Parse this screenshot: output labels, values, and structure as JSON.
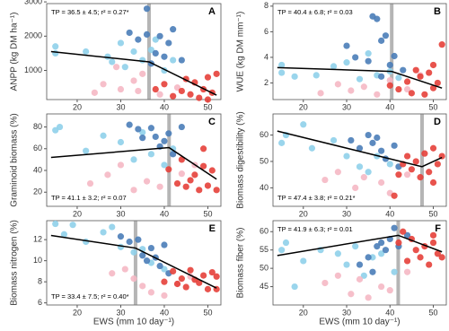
{
  "chart_data": [
    {
      "type": "scatter",
      "letter": "A",
      "ylabel": "ANPP (kg DM ha⁻¹)",
      "annotation": "TP = 36.5 ± 4.5; r² = 0.27*",
      "annotation_corner": "top-left",
      "xlim": [
        13,
        53
      ],
      "xticks": [
        20,
        30,
        40,
        50
      ],
      "ylim": [
        150,
        2950
      ],
      "yticks": [
        1000,
        2000,
        3000
      ],
      "tp": 36.5,
      "fit": {
        "x": [
          14,
          36.5,
          52
        ],
        "values": [
          1550,
          1250,
          280
        ]
      },
      "series": [
        {
          "color": "#8fd0ea",
          "x": [
            15,
            15,
            22,
            27,
            30,
            33,
            35,
            37,
            38,
            40,
            42,
            28,
            31
          ],
          "values": [
            1700,
            1500,
            1550,
            1400,
            1800,
            1550,
            1300,
            1600,
            1900,
            1000,
            1300,
            1250,
            1100
          ]
        },
        {
          "color": "#4a7db8",
          "x": [
            32,
            34,
            36,
            36,
            38,
            39,
            40,
            41,
            42,
            44,
            37
          ],
          "values": [
            2100,
            1900,
            2050,
            2800,
            1500,
            2000,
            1400,
            1800,
            2200,
            1300,
            1200
          ]
        },
        {
          "color": "#f5b8c4",
          "x": [
            24,
            26,
            30,
            33,
            34,
            35,
            39,
            43,
            29
          ],
          "values": [
            350,
            600,
            450,
            700,
            400,
            900,
            300,
            500,
            1100
          ]
        },
        {
          "color": "#e5403a",
          "x": [
            38,
            40,
            42,
            44,
            45,
            46,
            47,
            48,
            49,
            50,
            51,
            52,
            50
          ],
          "values": [
            450,
            600,
            250,
            400,
            750,
            300,
            650,
            200,
            450,
            800,
            350,
            900,
            150
          ]
        }
      ]
    },
    {
      "type": "scatter",
      "letter": "B",
      "ylabel": "WUE (kg DM mm⁻¹)",
      "annotation": "TP = 40.4 ± 6.8; r² = 0.03",
      "annotation_corner": "top-left",
      "xlim": [
        13,
        53
      ],
      "xticks": [
        20,
        30,
        40,
        50
      ],
      "ylim": [
        0.7,
        8.2
      ],
      "yticks": [
        2,
        4,
        6,
        8
      ],
      "tp": 40.4,
      "fit": {
        "x": [
          14,
          40.4,
          52
        ],
        "values": [
          3.2,
          2.9,
          1.6
        ]
      },
      "series": [
        {
          "color": "#8fd0ea",
          "x": [
            15,
            15,
            18,
            23,
            27,
            30,
            33,
            35,
            37,
            40,
            42
          ],
          "values": [
            2.8,
            3.4,
            2.5,
            2.6,
            3.3,
            3.6,
            2.3,
            4.3,
            2.6,
            2.9,
            2.4
          ]
        },
        {
          "color": "#4a7db8",
          "x": [
            30,
            32,
            35,
            36,
            37,
            38,
            39,
            40,
            41,
            43,
            38
          ],
          "values": [
            4.9,
            4.0,
            3.7,
            7.2,
            7.0,
            5.3,
            5.7,
            3.4,
            4.1,
            3.0,
            2.5
          ]
        },
        {
          "color": "#f5b8c4",
          "x": [
            24,
            28,
            31,
            34,
            37,
            40,
            44,
            47
          ],
          "values": [
            1.2,
            1.9,
            1.4,
            1.7,
            1.1,
            2.2,
            1.5,
            2.6
          ]
        },
        {
          "color": "#e5403a",
          "x": [
            40,
            42,
            44,
            45,
            46,
            47,
            48,
            49,
            50,
            51,
            52,
            50
          ],
          "values": [
            1.8,
            1.5,
            2.1,
            1.2,
            3.0,
            2.5,
            1.1,
            2.8,
            1.6,
            2.0,
            5.0,
            3.4
          ]
        }
      ]
    },
    {
      "type": "scatter",
      "letter": "C",
      "ylabel": "Graminoid biomass (%)",
      "annotation": "TP = 41.1 ± 3.2; r² = 0.07",
      "annotation_corner": "bottom-left",
      "xlim": [
        13,
        53
      ],
      "xticks": [
        20,
        30,
        40,
        50
      ],
      "ylim": [
        7,
        92
      ],
      "yticks": [
        20,
        40,
        60,
        80
      ],
      "tp": 41.1,
      "fit": {
        "x": [
          14,
          41.1,
          52
        ],
        "values": [
          52,
          61,
          32
        ]
      },
      "series": [
        {
          "color": "#8fd0ea",
          "x": [
            15,
            16,
            22,
            26,
            30,
            33,
            35,
            37,
            40,
            42
          ],
          "values": [
            77,
            80,
            58,
            72,
            66,
            50,
            75,
            55,
            45,
            60
          ]
        },
        {
          "color": "#4a7db8",
          "x": [
            32,
            34,
            35,
            37,
            38,
            39,
            40,
            41,
            42,
            44
          ],
          "values": [
            82,
            78,
            70,
            79,
            71,
            62,
            67,
            74,
            55,
            80
          ]
        },
        {
          "color": "#f5b8c4",
          "x": [
            23,
            27,
            30,
            33,
            36,
            39,
            44,
            47
          ],
          "values": [
            28,
            36,
            45,
            22,
            30,
            25,
            37,
            45
          ]
        },
        {
          "color": "#e5403a",
          "x": [
            41,
            43,
            44,
            45,
            46,
            47,
            48,
            49,
            50,
            51,
            52,
            49
          ],
          "values": [
            41,
            28,
            50,
            25,
            31,
            36,
            22,
            44,
            26,
            40,
            22,
            60
          ]
        }
      ]
    },
    {
      "type": "scatter",
      "letter": "D",
      "ylabel": "Biomass digestibility (%)",
      "annotation": "TP = 47.4 ± 3.8; r² = 0.21*",
      "annotation_corner": "bottom-left",
      "xlim": [
        13,
        53
      ],
      "xticks": [
        20,
        30,
        40,
        50
      ],
      "ylim": [
        33,
        68
      ],
      "yticks": [
        40,
        50,
        60
      ],
      "tp": 47.4,
      "fit": {
        "x": [
          14,
          47.4,
          52
        ],
        "values": [
          61.5,
          48,
          51.5
        ]
      },
      "series": [
        {
          "color": "#8fd0ea",
          "x": [
            15,
            16,
            20,
            22,
            27,
            30,
            33,
            35,
            37,
            40
          ],
          "values": [
            57,
            60,
            64,
            55,
            58,
            52,
            48,
            46,
            52,
            49
          ]
        },
        {
          "color": "#4a7db8",
          "x": [
            31,
            33,
            35,
            36,
            37,
            38,
            39,
            41,
            42
          ],
          "values": [
            58,
            55,
            60,
            57,
            59,
            54,
            51,
            56,
            48
          ]
        },
        {
          "color": "#f5b8c4",
          "x": [
            25,
            28,
            32,
            34,
            38,
            40,
            44
          ],
          "values": [
            43,
            46,
            40,
            44,
            42,
            38,
            45
          ]
        },
        {
          "color": "#e5403a",
          "x": [
            42,
            43,
            44,
            45,
            46,
            47,
            48,
            49,
            50,
            51,
            52,
            50,
            41
          ],
          "values": [
            45,
            49,
            52,
            47,
            50,
            44,
            53,
            46,
            55,
            49,
            52,
            42,
            37
          ]
        }
      ]
    },
    {
      "type": "scatter",
      "letter": "E",
      "ylabel": "Biomass nitrogen (%)",
      "xlabel": "EWS (mm 10 day⁻¹)",
      "annotation": "TP = 33.4 ± 7.5; r² = 0.40*",
      "annotation_corner": "bottom-left",
      "xlim": [
        13,
        53
      ],
      "xticks": [
        20,
        30,
        40,
        50
      ],
      "ylim": [
        5.8,
        13.8
      ],
      "yticks": [
        6,
        8,
        10,
        12
      ],
      "tp": 33.4,
      "fit": {
        "x": [
          14,
          33.4,
          52
        ],
        "values": [
          12.4,
          11.2,
          7.4
        ]
      },
      "series": [
        {
          "color": "#8fd0ea",
          "x": [
            15,
            17,
            19,
            22,
            26,
            28,
            30,
            33,
            35,
            37,
            40
          ],
          "values": [
            13.5,
            12.5,
            13.4,
            11.8,
            12.7,
            13.2,
            11.3,
            10.8,
            11.1,
            9.8,
            9.2
          ]
        },
        {
          "color": "#4a7db8",
          "x": [
            30,
            32,
            34,
            35,
            36,
            37,
            38,
            39,
            40,
            41
          ],
          "values": [
            12.3,
            11.8,
            12.0,
            10.5,
            10.0,
            11.2,
            10.3,
            9.5,
            11.5,
            8.8
          ]
        },
        {
          "color": "#f5b8c4",
          "x": [
            28,
            31,
            33,
            35,
            37,
            40,
            43,
            46
          ],
          "values": [
            8.8,
            9.2,
            8.3,
            7.6,
            7.0,
            6.7,
            7.8,
            8.5
          ]
        },
        {
          "color": "#e5403a",
          "x": [
            40,
            42,
            43,
            44,
            45,
            46,
            47,
            48,
            49,
            50,
            51,
            52,
            52
          ],
          "values": [
            8.0,
            9.0,
            7.8,
            8.3,
            7.5,
            9.1,
            8.2,
            7.9,
            8.6,
            7.3,
            8.9,
            8.5,
            7.3
          ]
        }
      ]
    },
    {
      "type": "scatter",
      "letter": "F",
      "ylabel": "Biomass fiber (%)",
      "xlabel": "EWS (mm 10 day⁻¹)",
      "annotation": "TP = 41.9 ± 6.3; r² = 0.01",
      "annotation_corner": "top-left",
      "xlim": [
        13,
        53
      ],
      "xticks": [
        20,
        30,
        40,
        50
      ],
      "ylim": [
        40,
        63
      ],
      "yticks": [
        45,
        50,
        55,
        60
      ],
      "tp": 41.9,
      "fit": {
        "x": [
          14,
          41.9,
          52
        ],
        "values": [
          53.5,
          59,
          54.5
        ]
      },
      "series": [
        {
          "color": "#8fd0ea",
          "x": [
            15,
            16,
            18,
            20,
            24,
            28,
            30,
            32,
            34,
            36,
            38,
            41
          ],
          "values": [
            55,
            57,
            45,
            52,
            55,
            54,
            51,
            56,
            48,
            53,
            54,
            49
          ]
        },
        {
          "color": "#4a7db8",
          "x": [
            33,
            35,
            36,
            37,
            38,
            39,
            40,
            41,
            42,
            44
          ],
          "values": [
            51,
            53,
            49,
            56,
            57,
            55,
            58,
            61,
            56,
            59
          ]
        },
        {
          "color": "#f5b8c4",
          "x": [
            25,
            28,
            31,
            33,
            35,
            38,
            40,
            44
          ],
          "values": [
            46,
            48,
            43,
            47,
            42,
            45,
            44,
            49
          ]
        },
        {
          "color": "#e5403a",
          "x": [
            42,
            43,
            44,
            45,
            46,
            47,
            48,
            49,
            50,
            51,
            52,
            50
          ],
          "values": [
            57,
            60,
            52,
            58,
            55,
            53,
            56,
            51,
            57,
            54,
            53,
            59
          ]
        }
      ]
    }
  ]
}
